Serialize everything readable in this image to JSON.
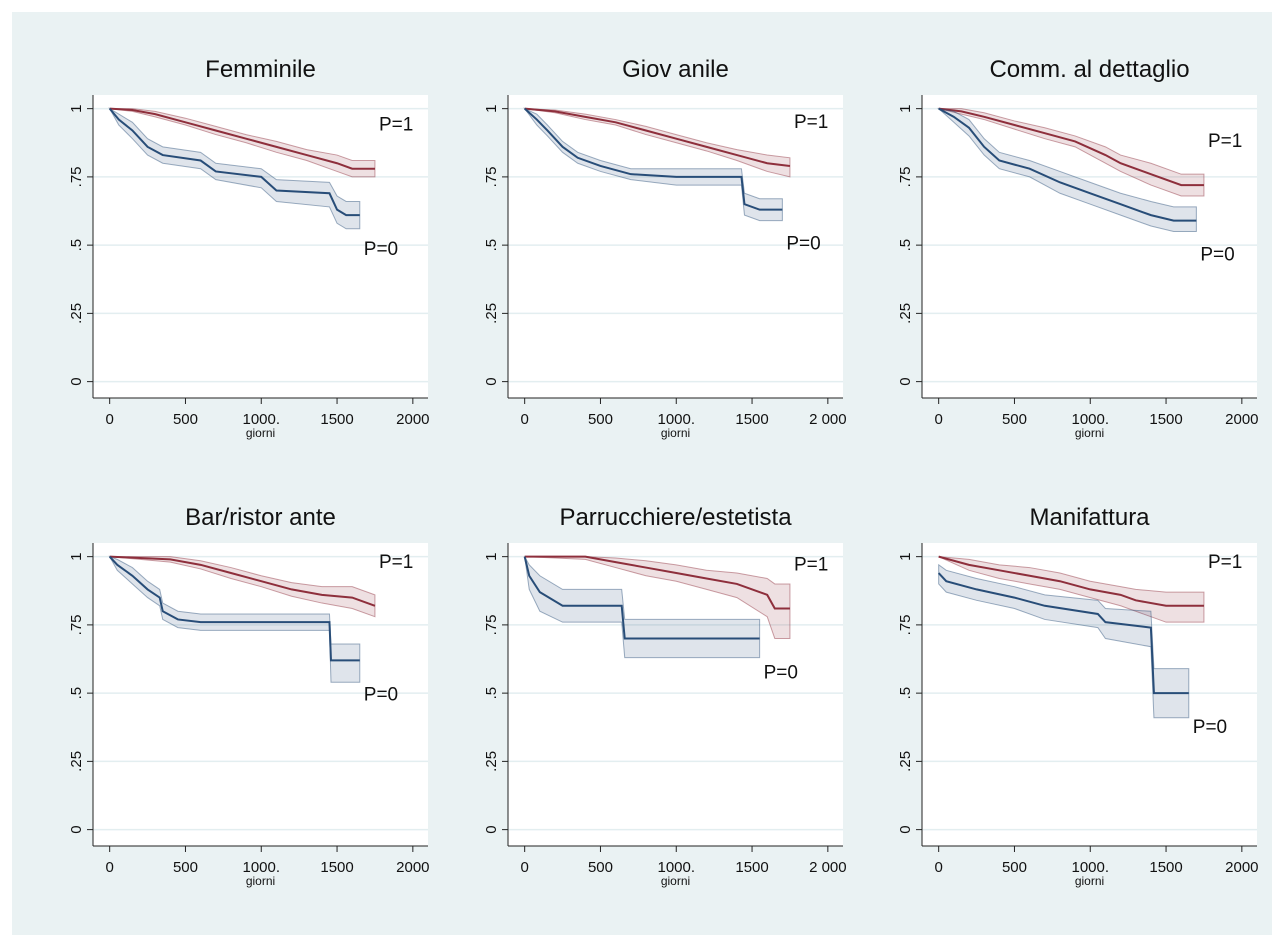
{
  "chart_data": [
    {
      "type": "line",
      "title": "Femminile",
      "xlabel": "giorni",
      "xlim": [
        -110,
        2100
      ],
      "ylim": [
        -0.06,
        1.05
      ],
      "xticks": [
        0,
        500,
        {
          "value": 1000,
          "label": "1000."
        },
        1500,
        2000
      ],
      "yticks": [
        0,
        {
          "value": 0.25,
          "label": ".25"
        },
        {
          "value": 0.5,
          "label": ".5"
        },
        {
          "value": 0.75,
          "label": ".75"
        },
        1
      ],
      "grid": true,
      "series": [
        {
          "name": "P=1",
          "color": "#8e2f3c",
          "x": [
            0,
            150,
            300,
            500,
            700,
            900,
            1100,
            1300,
            1500,
            1600,
            1750
          ],
          "values": [
            1,
            0.995,
            0.98,
            0.95,
            0.92,
            0.89,
            0.86,
            0.83,
            0.8,
            0.78,
            0.78
          ],
          "lower": [
            1,
            0.99,
            0.97,
            0.94,
            0.905,
            0.875,
            0.84,
            0.81,
            0.77,
            0.75,
            0.75
          ],
          "upper": [
            1,
            1,
            0.99,
            0.965,
            0.935,
            0.905,
            0.88,
            0.85,
            0.83,
            0.81,
            0.81
          ]
        },
        {
          "name": "P=0",
          "color": "#284d78",
          "x": [
            0,
            60,
            150,
            250,
            350,
            600,
            700,
            1000,
            1100,
            1450,
            1500,
            1560,
            1650
          ],
          "values": [
            1,
            0.96,
            0.92,
            0.86,
            0.83,
            0.81,
            0.77,
            0.75,
            0.7,
            0.69,
            0.63,
            0.61,
            0.61
          ],
          "lower": [
            1,
            0.94,
            0.89,
            0.83,
            0.8,
            0.78,
            0.74,
            0.71,
            0.66,
            0.64,
            0.58,
            0.56,
            0.56
          ],
          "upper": [
            1,
            0.98,
            0.95,
            0.89,
            0.86,
            0.84,
            0.8,
            0.78,
            0.74,
            0.73,
            0.68,
            0.66,
            0.66
          ]
        }
      ]
    },
    {
      "type": "line",
      "title": "Giov anile",
      "xlabel": "giorni",
      "xlim": [
        -110,
        2100
      ],
      "ylim": [
        -0.06,
        1.05
      ],
      "xticks": [
        0,
        500,
        {
          "value": 1000,
          "label": "1000."
        },
        1500,
        {
          "value": 2000,
          "label": "2 000"
        }
      ],
      "yticks": [
        0,
        {
          "value": 0.25,
          "label": ".25"
        },
        {
          "value": 0.5,
          "label": ".5"
        },
        {
          "value": 0.75,
          "label": ".75"
        },
        1
      ],
      "grid": true,
      "series": [
        {
          "name": "P=1",
          "color": "#8e2f3c",
          "x": [
            0,
            200,
            400,
            600,
            800,
            1000,
            1200,
            1400,
            1600,
            1750
          ],
          "values": [
            1,
            0.99,
            0.97,
            0.95,
            0.92,
            0.89,
            0.86,
            0.83,
            0.8,
            0.79
          ],
          "lower": [
            1,
            0.985,
            0.96,
            0.94,
            0.905,
            0.875,
            0.845,
            0.81,
            0.77,
            0.75
          ],
          "upper": [
            1,
            0.995,
            0.98,
            0.96,
            0.935,
            0.905,
            0.875,
            0.85,
            0.83,
            0.82
          ]
        },
        {
          "name": "P=0",
          "color": "#284d78",
          "x": [
            0,
            80,
            150,
            250,
            350,
            500,
            700,
            1000,
            1430,
            1450,
            1550,
            1700
          ],
          "values": [
            1,
            0.96,
            0.92,
            0.86,
            0.82,
            0.79,
            0.76,
            0.75,
            0.75,
            0.65,
            0.63,
            0.63
          ],
          "lower": [
            1,
            0.94,
            0.9,
            0.84,
            0.8,
            0.77,
            0.74,
            0.72,
            0.72,
            0.61,
            0.59,
            0.59
          ],
          "upper": [
            1,
            0.98,
            0.94,
            0.88,
            0.84,
            0.81,
            0.78,
            0.78,
            0.78,
            0.69,
            0.67,
            0.67
          ]
        }
      ]
    },
    {
      "type": "line",
      "title": "Comm. al dettaglio",
      "xlabel": "giorni",
      "xlim": [
        -110,
        2100
      ],
      "ylim": [
        -0.06,
        1.05
      ],
      "xticks": [
        0,
        500,
        {
          "value": 1000,
          "label": "1000."
        },
        1500,
        2000
      ],
      "yticks": [
        0,
        {
          "value": 0.25,
          "label": ".25"
        },
        {
          "value": 0.5,
          "label": ".5"
        },
        {
          "value": 0.75,
          "label": ".75"
        },
        1
      ],
      "grid": true,
      "series": [
        {
          "name": "P=1",
          "color": "#8e2f3c",
          "x": [
            0,
            150,
            300,
            500,
            700,
            900,
            1100,
            1200,
            1400,
            1600,
            1750
          ],
          "values": [
            1,
            0.99,
            0.97,
            0.94,
            0.91,
            0.88,
            0.83,
            0.8,
            0.76,
            0.72,
            0.72
          ],
          "lower": [
            1,
            0.98,
            0.96,
            0.925,
            0.89,
            0.86,
            0.8,
            0.77,
            0.72,
            0.68,
            0.68
          ],
          "upper": [
            1,
            1,
            0.985,
            0.955,
            0.93,
            0.9,
            0.86,
            0.83,
            0.8,
            0.76,
            0.76
          ]
        },
        {
          "name": "P=0",
          "color": "#284d78",
          "x": [
            0,
            100,
            200,
            300,
            400,
            600,
            800,
            1000,
            1200,
            1400,
            1550,
            1700
          ],
          "values": [
            1,
            0.97,
            0.93,
            0.86,
            0.81,
            0.78,
            0.73,
            0.69,
            0.65,
            0.61,
            0.59,
            0.59
          ],
          "lower": [
            1,
            0.95,
            0.9,
            0.83,
            0.78,
            0.75,
            0.69,
            0.65,
            0.61,
            0.57,
            0.55,
            0.55
          ],
          "upper": [
            1,
            0.99,
            0.96,
            0.89,
            0.84,
            0.81,
            0.77,
            0.73,
            0.69,
            0.66,
            0.64,
            0.64
          ]
        }
      ]
    },
    {
      "type": "line",
      "title": "Bar/ristor ante",
      "xlabel": "giorni",
      "xlim": [
        -110,
        2100
      ],
      "ylim": [
        -0.06,
        1.05
      ],
      "xticks": [
        0,
        500,
        {
          "value": 1000,
          "label": "1000."
        },
        1500,
        2000
      ],
      "yticks": [
        0,
        {
          "value": 0.25,
          "label": ".25"
        },
        {
          "value": 0.5,
          "label": ".5"
        },
        {
          "value": 0.75,
          "label": ".75"
        },
        1
      ],
      "grid": true,
      "series": [
        {
          "name": "P=1",
          "color": "#8e2f3c",
          "x": [
            0,
            200,
            400,
            600,
            800,
            1000,
            1200,
            1400,
            1600,
            1750
          ],
          "values": [
            1,
            0.995,
            0.99,
            0.97,
            0.94,
            0.91,
            0.88,
            0.86,
            0.85,
            0.82
          ],
          "lower": [
            1,
            0.99,
            0.98,
            0.955,
            0.92,
            0.89,
            0.855,
            0.83,
            0.81,
            0.78
          ],
          "upper": [
            1,
            1,
            1,
            0.985,
            0.96,
            0.93,
            0.905,
            0.89,
            0.89,
            0.86
          ]
        },
        {
          "name": "P=0",
          "color": "#284d78",
          "x": [
            0,
            50,
            150,
            250,
            330,
            350,
            450,
            600,
            1450,
            1460,
            1650
          ],
          "values": [
            1,
            0.97,
            0.93,
            0.88,
            0.85,
            0.8,
            0.77,
            0.76,
            0.76,
            0.62,
            0.62
          ],
          "lower": [
            1,
            0.95,
            0.9,
            0.85,
            0.82,
            0.77,
            0.74,
            0.73,
            0.73,
            0.54,
            0.54
          ],
          "upper": [
            1,
            0.99,
            0.96,
            0.91,
            0.88,
            0.83,
            0.8,
            0.79,
            0.79,
            0.68,
            0.68
          ]
        }
      ]
    },
    {
      "type": "line",
      "title": "Parrucchiere/estetista",
      "xlabel": "giorni",
      "xlim": [
        -110,
        2100
      ],
      "ylim": [
        -0.06,
        1.05
      ],
      "xticks": [
        0,
        500,
        {
          "value": 1000,
          "label": "1000."
        },
        1500,
        {
          "value": 2000,
          "label": "2 000"
        }
      ],
      "yticks": [
        0,
        {
          "value": 0.25,
          "label": ".25"
        },
        {
          "value": 0.5,
          "label": ".5"
        },
        {
          "value": 0.75,
          "label": ".75"
        },
        1
      ],
      "grid": true,
      "series": [
        {
          "name": "P=1",
          "color": "#8e2f3c",
          "x": [
            0,
            400,
            600,
            800,
            1000,
            1200,
            1400,
            1600,
            1650,
            1750
          ],
          "values": [
            1,
            1,
            0.98,
            0.96,
            0.94,
            0.92,
            0.9,
            0.86,
            0.81,
            0.81
          ],
          "lower": [
            1,
            0.99,
            0.96,
            0.93,
            0.91,
            0.88,
            0.85,
            0.78,
            0.7,
            0.7
          ],
          "upper": [
            1,
            1,
            0.995,
            0.985,
            0.97,
            0.95,
            0.94,
            0.92,
            0.9,
            0.9
          ]
        },
        {
          "name": "P=0",
          "color": "#284d78",
          "x": [
            0,
            30,
            100,
            250,
            640,
            660,
            1550
          ],
          "values": [
            1,
            0.93,
            0.87,
            0.82,
            0.82,
            0.7,
            0.7
          ],
          "lower": [
            1,
            0.88,
            0.8,
            0.76,
            0.76,
            0.63,
            0.63
          ],
          "upper": [
            1,
            0.97,
            0.93,
            0.88,
            0.88,
            0.77,
            0.77
          ]
        }
      ]
    },
    {
      "type": "line",
      "title": "Manifattura",
      "xlabel": "giorni",
      "xlim": [
        -110,
        2100
      ],
      "ylim": [
        -0.06,
        1.05
      ],
      "xticks": [
        0,
        500,
        {
          "value": 1000,
          "label": "1000."
        },
        1500,
        2000
      ],
      "yticks": [
        0,
        {
          "value": 0.25,
          "label": ".25"
        },
        {
          "value": 0.5,
          "label": ".5"
        },
        {
          "value": 0.75,
          "label": ".75"
        },
        1
      ],
      "grid": true,
      "series": [
        {
          "name": "P=1",
          "color": "#8e2f3c",
          "x": [
            0,
            200,
            400,
            600,
            800,
            1000,
            1200,
            1300,
            1500,
            1750
          ],
          "values": [
            1,
            0.97,
            0.95,
            0.93,
            0.91,
            0.88,
            0.86,
            0.84,
            0.82,
            0.82
          ],
          "lower": [
            1,
            0.95,
            0.92,
            0.9,
            0.88,
            0.85,
            0.82,
            0.8,
            0.76,
            0.76
          ],
          "upper": [
            1,
            0.99,
            0.97,
            0.96,
            0.94,
            0.91,
            0.89,
            0.88,
            0.87,
            0.87
          ]
        },
        {
          "name": "P=0",
          "color": "#284d78",
          "x": [
            0,
            50,
            250,
            500,
            700,
            1050,
            1100,
            1400,
            1420,
            1650
          ],
          "values": [
            0.94,
            0.91,
            0.88,
            0.85,
            0.82,
            0.79,
            0.76,
            0.74,
            0.5,
            0.5
          ],
          "lower": [
            0.9,
            0.87,
            0.84,
            0.81,
            0.77,
            0.74,
            0.7,
            0.67,
            0.41,
            0.41
          ],
          "upper": [
            0.97,
            0.95,
            0.92,
            0.89,
            0.86,
            0.84,
            0.81,
            0.8,
            0.59,
            0.59
          ]
        }
      ]
    }
  ]
}
